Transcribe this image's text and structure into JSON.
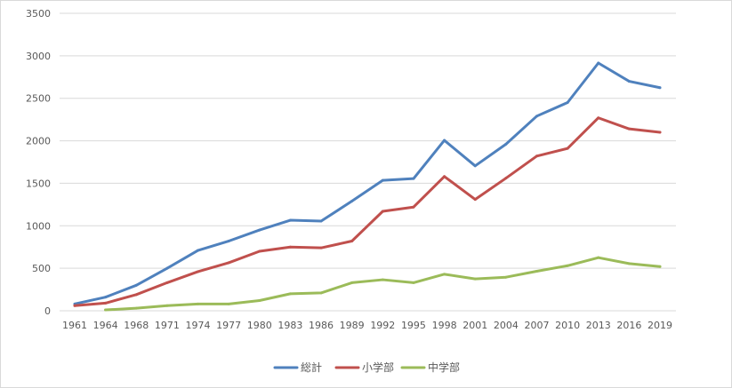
{
  "chart_data": {
    "type": "line",
    "title": "",
    "xlabel": "",
    "ylabel": "",
    "ylim": [
      0,
      3500
    ],
    "yticks": [
      0,
      500,
      1000,
      1500,
      2000,
      2500,
      3000,
      3500
    ],
    "grid": "horizontal",
    "legend_position": "bottom",
    "categories": [
      "1961",
      "1964",
      "1968",
      "1971",
      "1974",
      "1977",
      "1980",
      "1983",
      "1986",
      "1989",
      "1992",
      "1995",
      "1998",
      "2001",
      "2004",
      "2007",
      "2010",
      "2013",
      "2016",
      "2019"
    ],
    "series": [
      {
        "name": "総計",
        "color": "#4f81bd",
        "values": [
          80,
          160,
          300,
          500,
          710,
          820,
          950,
          1065,
          1055,
          1290,
          1535,
          1555,
          2005,
          1705,
          1960,
          2290,
          2450,
          2915,
          2700,
          2625
        ]
      },
      {
        "name": "小学部",
        "color": "#c0504d",
        "values": [
          60,
          90,
          190,
          330,
          460,
          565,
          700,
          750,
          740,
          820,
          1170,
          1220,
          1580,
          1310,
          1560,
          1820,
          1910,
          2270,
          2140,
          2100
        ]
      },
      {
        "name": "中学部",
        "color": "#9bbb59",
        "values": [
          null,
          10,
          30,
          60,
          80,
          80,
          120,
          200,
          210,
          330,
          365,
          330,
          430,
          375,
          395,
          465,
          530,
          625,
          555,
          520
        ]
      }
    ]
  }
}
